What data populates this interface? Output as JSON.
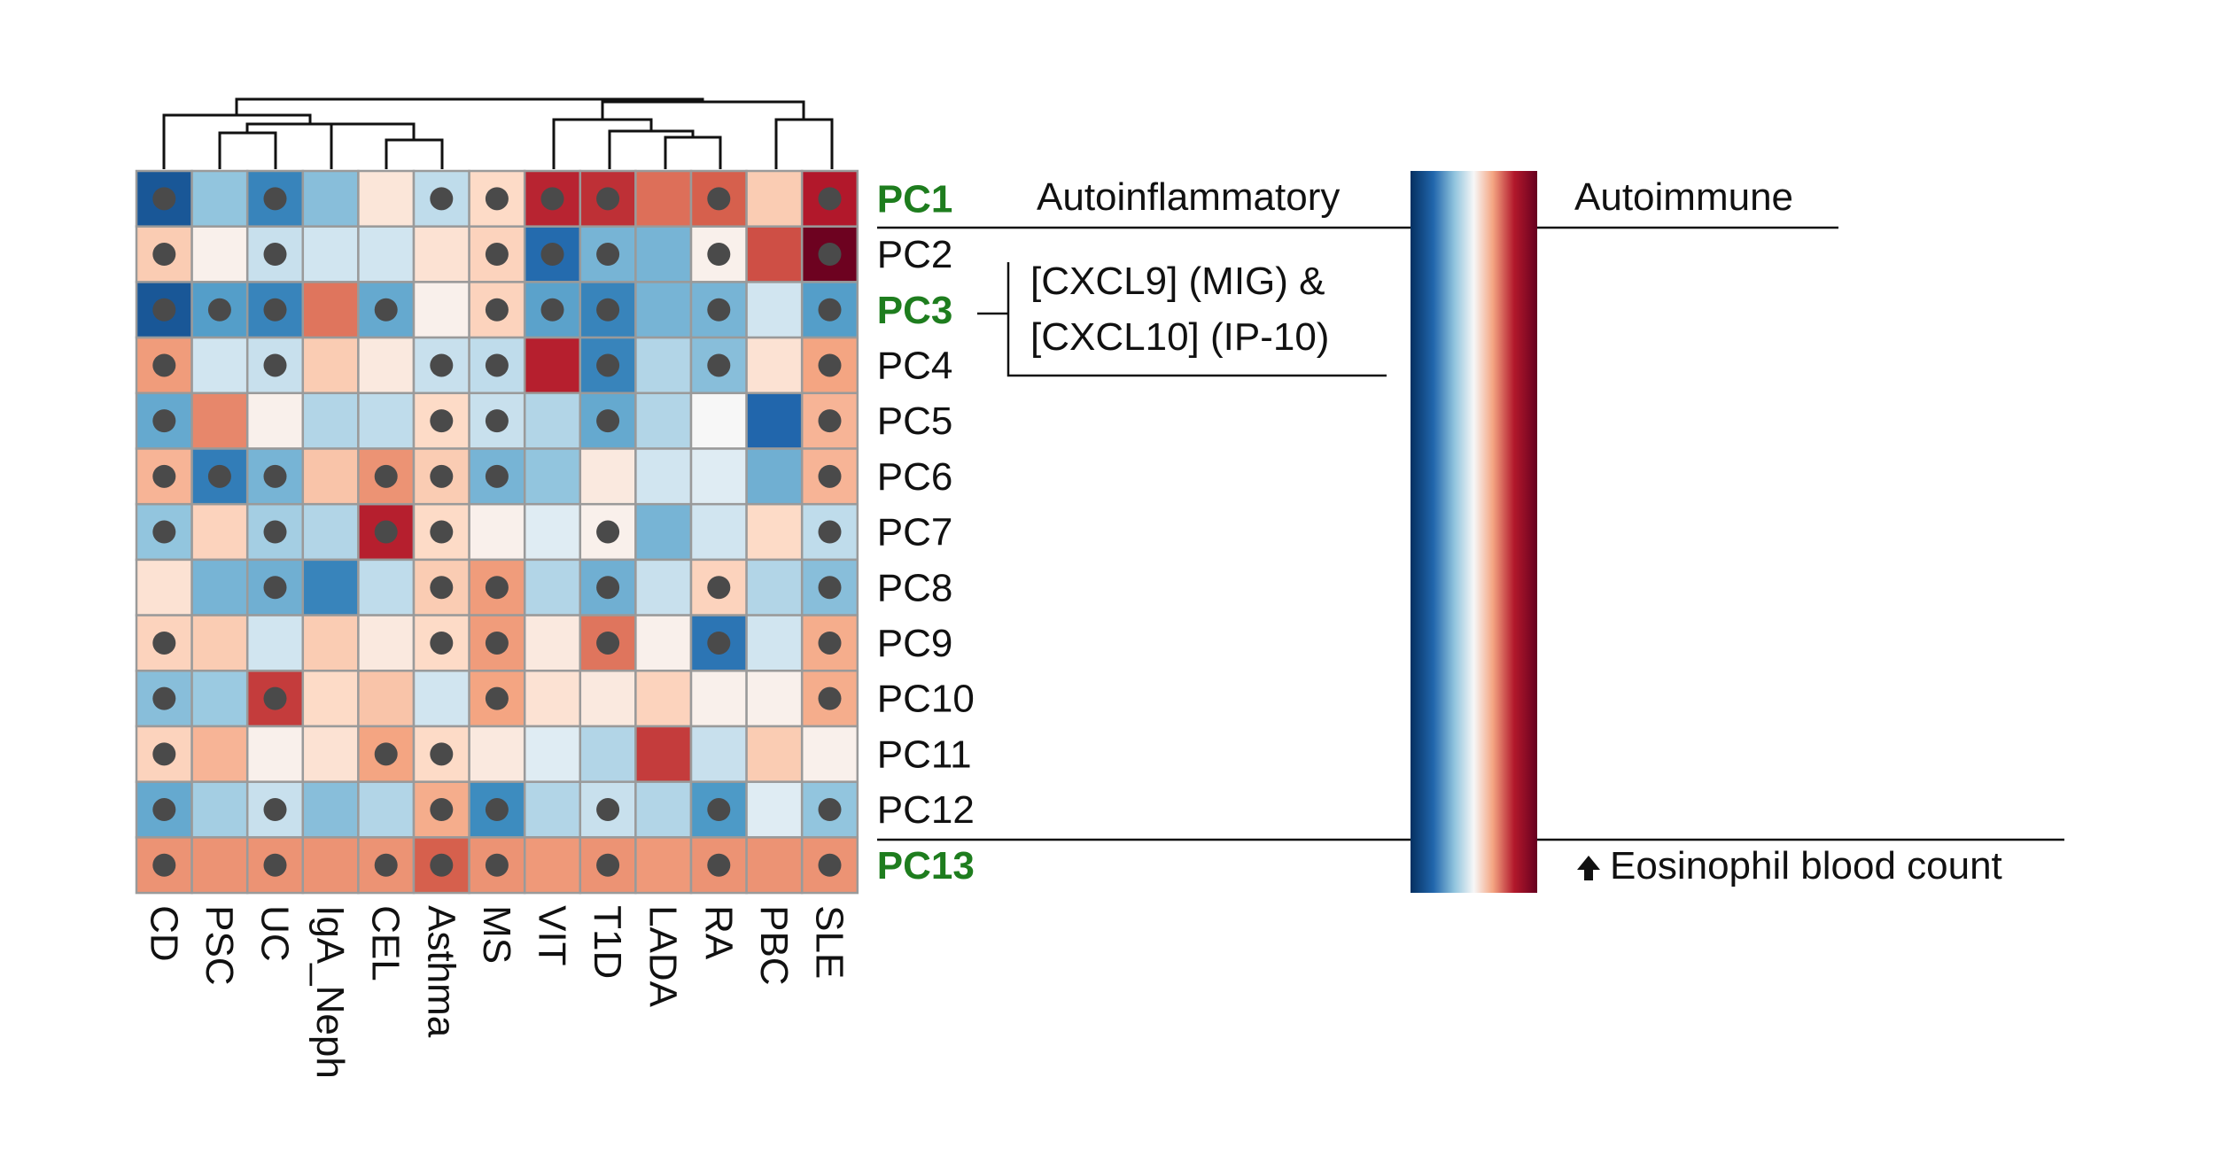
{
  "chart_data": {
    "type": "heatmap",
    "rows": [
      "PC1",
      "PC2",
      "PC3",
      "PC4",
      "PC5",
      "PC6",
      "PC7",
      "PC8",
      "PC9",
      "PC10",
      "PC11",
      "PC12",
      "PC13"
    ],
    "highlighted_rows": [
      "PC1",
      "PC3",
      "PC13"
    ],
    "columns": [
      "CD",
      "PSC",
      "UC",
      "IgA_Neph",
      "CEL",
      "Asthma",
      "MS",
      "VIT",
      "T1D",
      "LADA",
      "RA",
      "PBC",
      "SLE"
    ],
    "value_range": [
      -1,
      1
    ],
    "color_scale": {
      "low": "#053061",
      "mid": "#f7f7f7",
      "high": "#67001f"
    },
    "values": [
      [
        -0.82,
        -0.22,
        -0.55,
        -0.25,
        0.05,
        -0.12,
        0.08,
        0.7,
        0.65,
        0.4,
        0.45,
        0.12,
        0.75
      ],
      [
        0.12,
        0.02,
        -0.1,
        -0.08,
        -0.08,
        0.06,
        0.1,
        -0.72,
        -0.3,
        -0.3,
        0.02,
        0.52,
        0.98
      ],
      [
        -0.82,
        -0.4,
        -0.55,
        0.38,
        -0.35,
        0.02,
        0.1,
        -0.38,
        -0.55,
        -0.3,
        -0.3,
        -0.08,
        -0.4
      ],
      [
        0.25,
        -0.08,
        -0.1,
        0.12,
        0.04,
        -0.1,
        -0.12,
        0.72,
        -0.55,
        -0.15,
        -0.25,
        0.06,
        0.22
      ],
      [
        -0.35,
        0.32,
        0.02,
        -0.15,
        -0.12,
        0.08,
        -0.1,
        -0.15,
        -0.35,
        -0.15,
        0.0,
        -0.75,
        0.18
      ],
      [
        0.18,
        -0.6,
        -0.3,
        0.14,
        0.28,
        0.12,
        -0.3,
        -0.22,
        0.04,
        -0.08,
        -0.05,
        -0.32,
        0.18
      ],
      [
        -0.22,
        0.1,
        -0.18,
        -0.15,
        0.72,
        0.08,
        0.02,
        -0.05,
        0.02,
        -0.3,
        -0.08,
        0.08,
        -0.12
      ],
      [
        0.06,
        -0.3,
        -0.32,
        -0.55,
        -0.12,
        0.12,
        0.25,
        -0.15,
        -0.32,
        -0.1,
        0.1,
        -0.15,
        -0.25
      ],
      [
        0.1,
        0.12,
        -0.08,
        0.12,
        0.04,
        0.08,
        0.25,
        0.04,
        0.38,
        0.02,
        -0.65,
        -0.08,
        0.2
      ],
      [
        -0.25,
        -0.2,
        0.6,
        0.08,
        0.14,
        -0.08,
        0.22,
        0.06,
        0.04,
        0.1,
        0.02,
        0.02,
        0.2
      ],
      [
        0.1,
        0.18,
        0.02,
        0.06,
        0.22,
        0.08,
        0.04,
        -0.05,
        -0.15,
        0.6,
        -0.1,
        0.12,
        0.02
      ],
      [
        -0.35,
        -0.18,
        -0.1,
        -0.25,
        -0.15,
        0.2,
        -0.5,
        -0.15,
        -0.1,
        -0.15,
        -0.42,
        -0.05,
        -0.22
      ],
      [
        0.28,
        0.28,
        0.28,
        0.28,
        0.28,
        0.45,
        0.28,
        0.26,
        0.28,
        0.26,
        0.28,
        0.28,
        0.28
      ]
    ],
    "significant": [
      [
        1,
        0,
        1,
        0,
        0,
        1,
        1,
        1,
        1,
        0,
        1,
        0,
        1
      ],
      [
        1,
        0,
        1,
        0,
        0,
        0,
        1,
        1,
        1,
        0,
        1,
        0,
        1
      ],
      [
        1,
        1,
        1,
        0,
        1,
        0,
        1,
        1,
        1,
        0,
        1,
        0,
        1
      ],
      [
        1,
        0,
        1,
        0,
        0,
        1,
        1,
        0,
        1,
        0,
        1,
        0,
        1
      ],
      [
        1,
        0,
        0,
        0,
        0,
        1,
        1,
        0,
        1,
        0,
        0,
        0,
        1
      ],
      [
        1,
        1,
        1,
        0,
        1,
        1,
        1,
        0,
        0,
        0,
        0,
        0,
        1
      ],
      [
        1,
        0,
        1,
        0,
        1,
        1,
        0,
        0,
        1,
        0,
        0,
        0,
        1
      ],
      [
        0,
        0,
        1,
        0,
        0,
        1,
        1,
        0,
        1,
        0,
        1,
        0,
        1
      ],
      [
        1,
        0,
        0,
        0,
        0,
        1,
        1,
        0,
        1,
        0,
        1,
        0,
        1
      ],
      [
        1,
        0,
        1,
        0,
        0,
        0,
        1,
        0,
        0,
        0,
        0,
        0,
        1
      ],
      [
        1,
        0,
        0,
        0,
        1,
        1,
        0,
        0,
        0,
        0,
        0,
        0,
        0
      ],
      [
        1,
        0,
        1,
        0,
        0,
        1,
        1,
        0,
        1,
        0,
        1,
        0,
        1
      ],
      [
        1,
        0,
        1,
        0,
        1,
        1,
        1,
        0,
        1,
        0,
        1,
        0,
        1
      ]
    ],
    "column_dendrogram": true
  },
  "annotations": {
    "autoinflammatory": "Autoinflammatory",
    "autoimmune": "Autoimmune",
    "pc3_line1": "[CXCL9] (MIG) &",
    "pc3_line2": "[CXCL10] (IP-10)",
    "eosinophil": "Eosinophil blood count",
    "arrow_icon": "up-arrow-icon"
  },
  "colors": {
    "highlight_label": "#1e7d1e",
    "cell_border": "#9a9a9a",
    "dot": "#4a4a4a"
  }
}
